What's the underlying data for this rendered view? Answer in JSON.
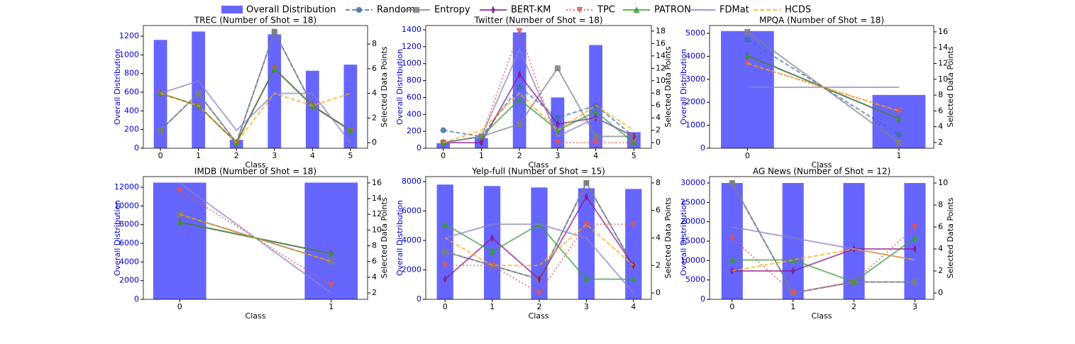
{
  "legend": {
    "bar": {
      "name": "Overall Distribution",
      "color": "#6666ff"
    },
    "series": [
      {
        "name": "Random",
        "color": "#3f6fa8",
        "dash": "dashed",
        "marker": "circle"
      },
      {
        "name": "Entropy",
        "color": "#808080",
        "dash": "solid",
        "marker": "square"
      },
      {
        "name": "BERT-KM",
        "color": "#8b1a8b",
        "dash": "solid",
        "marker": "diamond"
      },
      {
        "name": "TPC",
        "color": "#e05555",
        "dash": "dotted",
        "marker": "triangle-down"
      },
      {
        "name": "PATRON",
        "color": "#3a9a3a",
        "dash": "solid",
        "marker": "triangle-up"
      },
      {
        "name": "FDMat",
        "color": "#8e80c0",
        "dash": "solid",
        "marker": "none"
      },
      {
        "name": "HCDS",
        "color": "#ffa500",
        "dash": "dashed",
        "marker": "none"
      }
    ]
  },
  "chart_data": [
    {
      "type": "bar_line",
      "title": "TREC (Number of Shot = 18)",
      "xlabel": "Class",
      "ylabel": "Overall Distribution",
      "y2label": "Selected Data Points",
      "x": [
        0,
        1,
        2,
        3,
        4,
        5
      ],
      "xticks": [
        0,
        1,
        2,
        3,
        4,
        5
      ],
      "xlim": [
        -0.45,
        5.45
      ],
      "ylim": [
        0,
        1314
      ],
      "yticks": [
        0,
        200,
        400,
        600,
        800,
        1000,
        1200
      ],
      "y2lim": [
        -0.45,
        9.5
      ],
      "y2ticks": [
        0,
        2,
        4,
        6,
        8
      ],
      "bars": {
        "values": [
          1160,
          1250,
          90,
          1220,
          830,
          895
        ]
      },
      "series": [
        {
          "values": [
            1,
            4,
            0,
            9,
            3,
            1
          ]
        },
        {
          "values": [
            1,
            4,
            0,
            9,
            3,
            1
          ]
        },
        {
          "values": [
            4,
            3,
            0,
            6,
            3,
            1
          ]
        },
        {
          "values": [
            4,
            3,
            0,
            6,
            3,
            1
          ]
        },
        {
          "values": [
            4,
            3,
            0,
            6,
            3,
            1
          ]
        },
        {
          "values": [
            4,
            5,
            1,
            4,
            4,
            0
          ]
        },
        {
          "values": [
            4,
            3,
            0,
            4,
            3,
            4
          ]
        }
      ]
    },
    {
      "type": "bar_line",
      "title": "Twitter (Number of Shot = 18)",
      "xlabel": "Class",
      "ylabel": "Overall Distribution",
      "y2label": "Selected Data Points",
      "x": [
        0,
        1,
        2,
        3,
        4,
        5
      ],
      "xticks": [
        0,
        1,
        2,
        3,
        4,
        5
      ],
      "xlim": [
        -0.46,
        5.46
      ],
      "ylim": [
        0,
        1450
      ],
      "yticks": [
        0,
        200,
        400,
        600,
        800,
        1000,
        1200,
        1400
      ],
      "y2lim": [
        -0.9,
        18.9
      ],
      "y2ticks": [
        0,
        2,
        4,
        6,
        8,
        10,
        12,
        14,
        16,
        18
      ],
      "bars": {
        "values": [
          60,
          120,
          1370,
          600,
          1220,
          190
        ]
      },
      "series": [
        {
          "values": [
            2,
            1,
            9,
            4,
            6,
            1
          ]
        },
        {
          "values": [
            0,
            1,
            3,
            12,
            1,
            1
          ]
        },
        {
          "values": [
            0,
            0,
            11,
            3,
            4,
            1
          ]
        },
        {
          "values": [
            0,
            1,
            18,
            0,
            0,
            0
          ]
        },
        {
          "values": [
            0,
            1,
            7,
            2,
            5,
            0
          ]
        },
        {
          "values": [
            0,
            1,
            15,
            1,
            4,
            1
          ]
        },
        {
          "values": [
            0,
            2,
            8,
            2,
            6,
            2
          ]
        }
      ]
    },
    {
      "type": "bar_line",
      "title": "MPQA (Number of Shot = 18)",
      "xlabel": "Class",
      "ylabel": "Overall Distribution",
      "y2label": "Selected Data Points",
      "x": [
        0,
        1
      ],
      "xticks": [
        0,
        1
      ],
      "xlim": [
        -0.25,
        1.23
      ],
      "ylim": [
        0,
        5340
      ],
      "yticks": [
        0,
        1000,
        2000,
        3000,
        4000,
        5000
      ],
      "y2lim": [
        1.28,
        16.8
      ],
      "y2ticks": [
        2,
        4,
        6,
        8,
        10,
        12,
        14,
        16
      ],
      "bars": {
        "values": [
          5100,
          2320
        ]
      },
      "series": [
        {
          "values": [
            15,
            3
          ]
        },
        {
          "values": [
            16,
            2
          ]
        },
        {
          "values": [
            13,
            5
          ]
        },
        {
          "values": [
            12,
            6
          ]
        },
        {
          "values": [
            13,
            5
          ]
        },
        {
          "values": [
            9,
            9
          ]
        },
        {
          "values": [
            12,
            6
          ]
        }
      ]
    },
    {
      "type": "bar_line",
      "title": "IMDB (Number of Shot = 18)",
      "xlabel": "Class",
      "ylabel": "Overall Distribution",
      "y2label": "Selected Data Points",
      "x": [
        0,
        1
      ],
      "xticks": [
        0,
        1
      ],
      "xlim": [
        -0.24,
        1.24
      ],
      "ylim": [
        0,
        13140
      ],
      "yticks": [
        0,
        2000,
        4000,
        6000,
        8000,
        10000,
        12000
      ],
      "y2lim": [
        1.19,
        16.8
      ],
      "y2ticks": [
        2,
        4,
        6,
        8,
        10,
        12,
        14,
        16
      ],
      "bars": {
        "values": [
          12500,
          12500
        ]
      },
      "series": [
        {
          "values": [
            12,
            6
          ]
        },
        {
          "values": [
            12,
            6
          ]
        },
        {
          "values": [
            11,
            7
          ]
        },
        {
          "values": [
            15,
            3
          ]
        },
        {
          "values": [
            11,
            7
          ]
        },
        {
          "values": [
            16,
            2
          ]
        },
        {
          "values": [
            12,
            6
          ]
        }
      ]
    },
    {
      "type": "bar_line",
      "title": "Yelp-full (Number of Shot = 15)",
      "xlabel": "Class",
      "ylabel": "Overall Distribution",
      "y2label": "Selected Data Points",
      "x": [
        0,
        1,
        2,
        3,
        4
      ],
      "xticks": [
        0,
        1,
        2,
        3,
        4
      ],
      "xlim": [
        -0.41,
        4.38
      ],
      "ylim": [
        0,
        8340
      ],
      "yticks": [
        0,
        2000,
        4000,
        6000,
        8000
      ],
      "y2lim": [
        -0.46,
        8.46
      ],
      "y2ticks": [
        0,
        2,
        4,
        6,
        8
      ],
      "bars": {
        "values": [
          7800,
          7700,
          7600,
          7550,
          7500
        ]
      },
      "series": [
        {
          "values": [
            3,
            2,
            1,
            8,
            2
          ]
        },
        {
          "values": [
            3,
            2,
            1,
            8,
            2
          ]
        },
        {
          "values": [
            1,
            4,
            1,
            7,
            2
          ]
        },
        {
          "values": [
            2,
            2,
            0,
            5,
            5
          ]
        },
        {
          "values": [
            5,
            3,
            5,
            1,
            1
          ]
        },
        {
          "values": [
            4,
            5,
            5,
            4,
            0
          ]
        },
        {
          "values": [
            4,
            2,
            2,
            5,
            2
          ]
        }
      ]
    },
    {
      "type": "bar_line",
      "title": "AG News (Number of Shot = 12)",
      "xlabel": "Class",
      "ylabel": "Overall Distribution",
      "y2label": "Selected Data Points",
      "x": [
        0,
        1,
        2,
        3
      ],
      "xticks": [
        0,
        1,
        2,
        3
      ],
      "xlim": [
        -0.37,
        3.31
      ],
      "ylim": [
        0,
        31650
      ],
      "yticks": [
        0,
        5000,
        10000,
        15000,
        20000,
        25000,
        30000
      ],
      "y2lim": [
        -0.58,
        10.58
      ],
      "y2ticks": [
        0,
        2,
        4,
        6,
        8,
        10
      ],
      "bars": {
        "values": [
          30000,
          30000,
          30000,
          30000
        ]
      },
      "series": [
        {
          "values": [
            10,
            0,
            1,
            1
          ]
        },
        {
          "values": [
            10,
            0,
            1,
            1
          ]
        },
        {
          "values": [
            2,
            2,
            4,
            4
          ]
        },
        {
          "values": [
            5,
            0,
            1,
            6
          ]
        },
        {
          "values": [
            3,
            3,
            1,
            5
          ]
        },
        {
          "values": [
            6,
            5,
            4,
            3
          ]
        },
        {
          "values": [
            2,
            3,
            4,
            3
          ]
        }
      ]
    }
  ]
}
